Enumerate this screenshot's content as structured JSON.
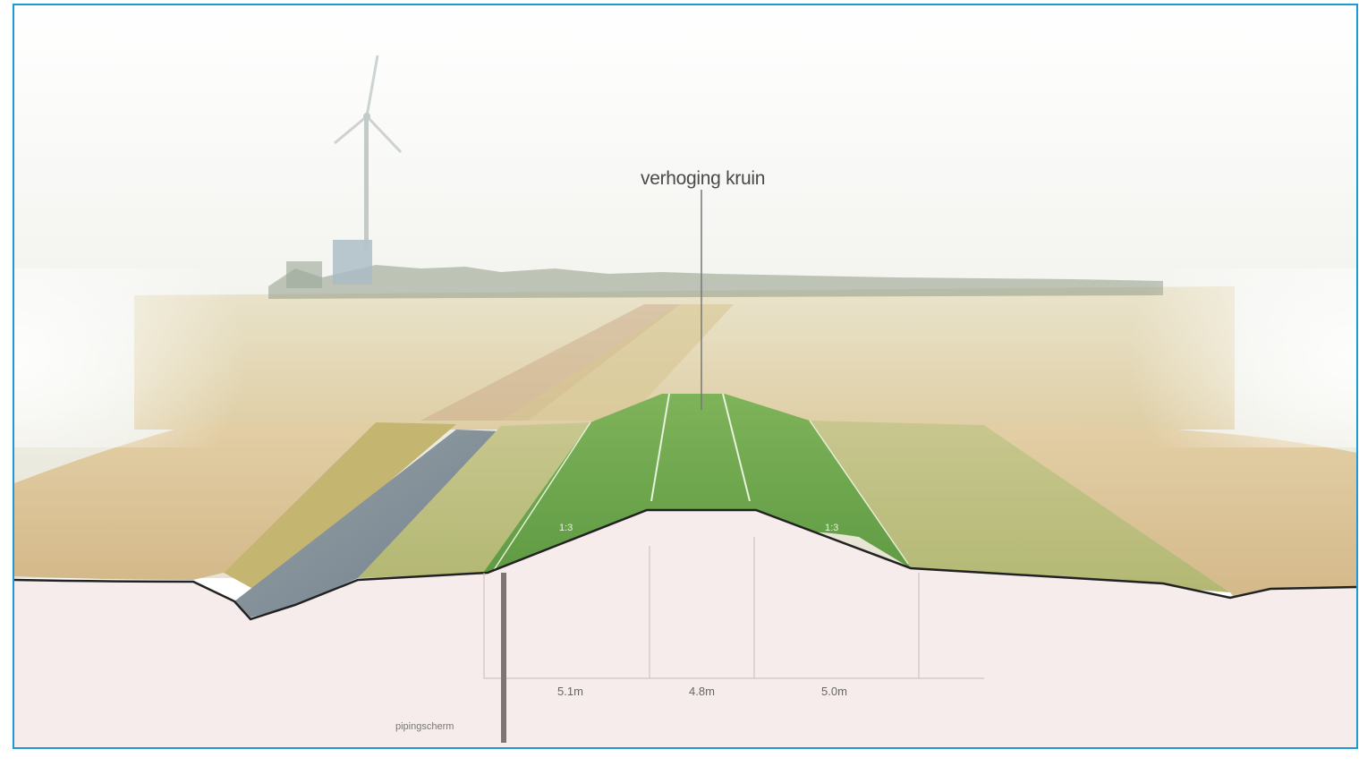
{
  "annotations": {
    "crest_label": "verhoging kruin",
    "piping_label": "pipingscherm"
  },
  "dimensions": {
    "segment_1": "5.1m",
    "segment_2": "4.8m",
    "segment_3": "5.0m"
  },
  "slopes": {
    "left": "1:3",
    "right": "1:3"
  },
  "colors": {
    "frame_border": "#1b9ad6",
    "grass_crest": "#6ea64d",
    "field": "#d8c194",
    "subsoil": "#f5ebe9",
    "water": "#8a97a3",
    "ground_line": "#222222"
  }
}
